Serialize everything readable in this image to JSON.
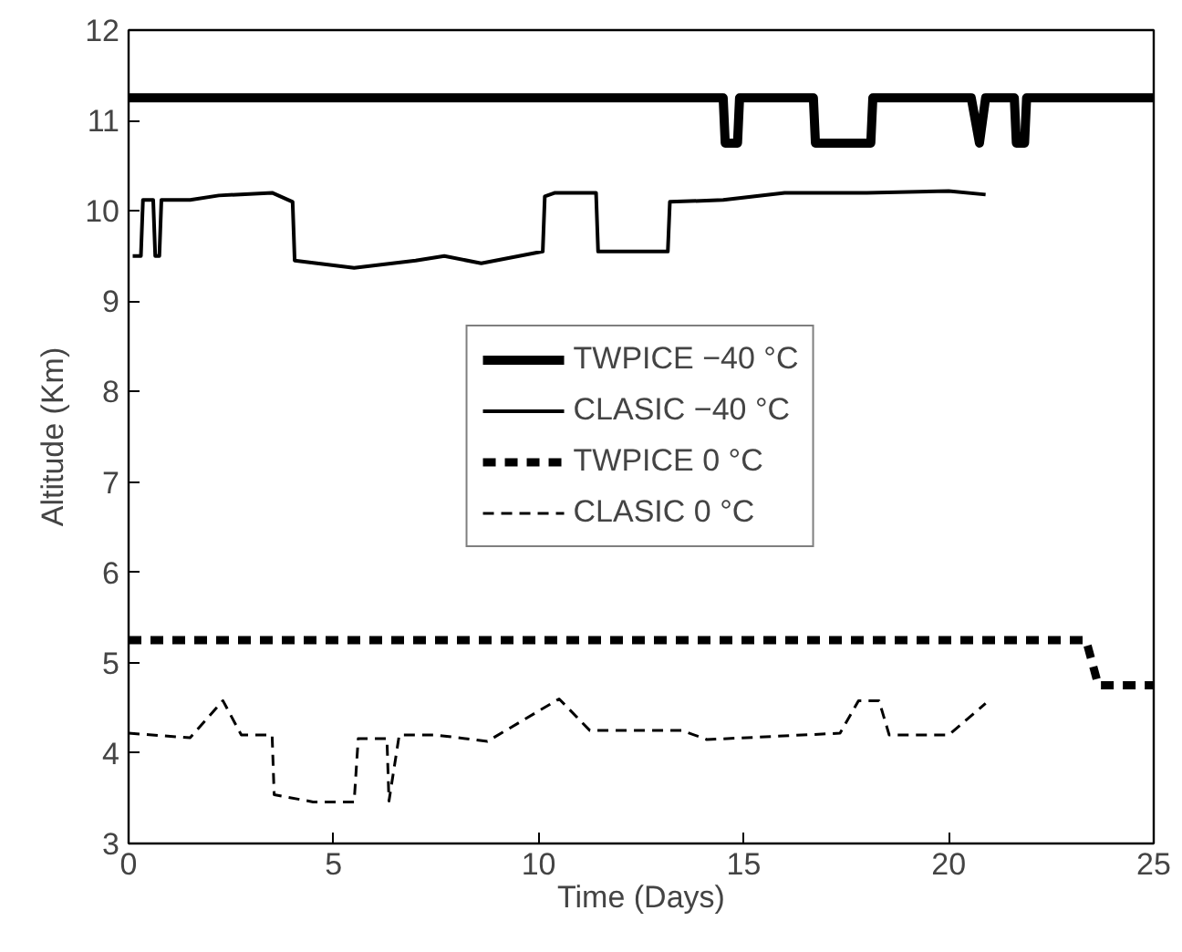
{
  "chart_data": {
    "type": "line",
    "xlabel": "Time (Days)",
    "ylabel": "Altitude (Km)",
    "xlim": [
      0,
      25
    ],
    "ylim": [
      3,
      12
    ],
    "xticks": [
      0,
      5,
      10,
      15,
      20,
      25
    ],
    "yticks": [
      3,
      4,
      5,
      6,
      7,
      8,
      9,
      10,
      11,
      12
    ],
    "grid": false,
    "legend": "center",
    "marker": "none",
    "series": [
      {
        "name": "TWPICE −40 °C",
        "color": "#000000",
        "line_style": "solid",
        "x": [
          0,
          14.5,
          14.55,
          14.85,
          14.9,
          16.7,
          16.75,
          18.1,
          18.15,
          20.55,
          20.75,
          20.9,
          21.6,
          21.65,
          21.85,
          21.9,
          25
        ],
        "values": [
          11.25,
          11.25,
          10.75,
          10.75,
          11.25,
          11.25,
          10.75,
          10.75,
          11.25,
          11.25,
          10.75,
          11.25,
          11.25,
          10.75,
          10.75,
          11.25,
          11.25
        ]
      },
      {
        "name": "CLASIC −40 °C",
        "color": "#000000",
        "line_style": "solid",
        "x": [
          0.1,
          0.3,
          0.35,
          0.6,
          0.65,
          0.75,
          0.8,
          1.5,
          2.2,
          3.5,
          4.0,
          4.05,
          5.5,
          7.0,
          7.7,
          8.6,
          10.1,
          10.15,
          10.4,
          11.4,
          11.45,
          13.15,
          13.2,
          14.5,
          16.0,
          18.0,
          20.0,
          20.9
        ],
        "values": [
          9.5,
          9.5,
          10.12,
          10.12,
          9.5,
          9.5,
          10.12,
          10.12,
          10.17,
          10.2,
          10.1,
          9.45,
          9.37,
          9.45,
          9.5,
          9.42,
          9.55,
          10.16,
          10.2,
          10.2,
          9.55,
          9.55,
          10.1,
          10.12,
          10.2,
          10.2,
          10.22,
          10.18
        ]
      },
      {
        "name": "TWPICE 0 °C",
        "color": "#000000",
        "line_style": "dashed",
        "x": [
          0,
          23.35,
          23.65,
          25
        ],
        "values": [
          5.25,
          5.25,
          4.75,
          4.75
        ]
      },
      {
        "name": "CLASIC 0 °C",
        "color": "#000000",
        "line_style": "dashed",
        "x": [
          0,
          1.5,
          2.3,
          2.75,
          3.5,
          3.55,
          4.5,
          5.5,
          5.6,
          6.3,
          6.35,
          6.6,
          7.5,
          8.75,
          10.5,
          11.25,
          13.5,
          14.1,
          17.35,
          17.8,
          18.3,
          18.55,
          20.0,
          20.9
        ],
        "values": [
          4.22,
          4.17,
          4.58,
          4.2,
          4.2,
          3.54,
          3.46,
          3.46,
          4.16,
          4.16,
          3.47,
          4.2,
          4.2,
          4.13,
          4.6,
          4.25,
          4.25,
          4.15,
          4.22,
          4.58,
          4.58,
          4.2,
          4.2,
          4.55
        ]
      }
    ]
  }
}
